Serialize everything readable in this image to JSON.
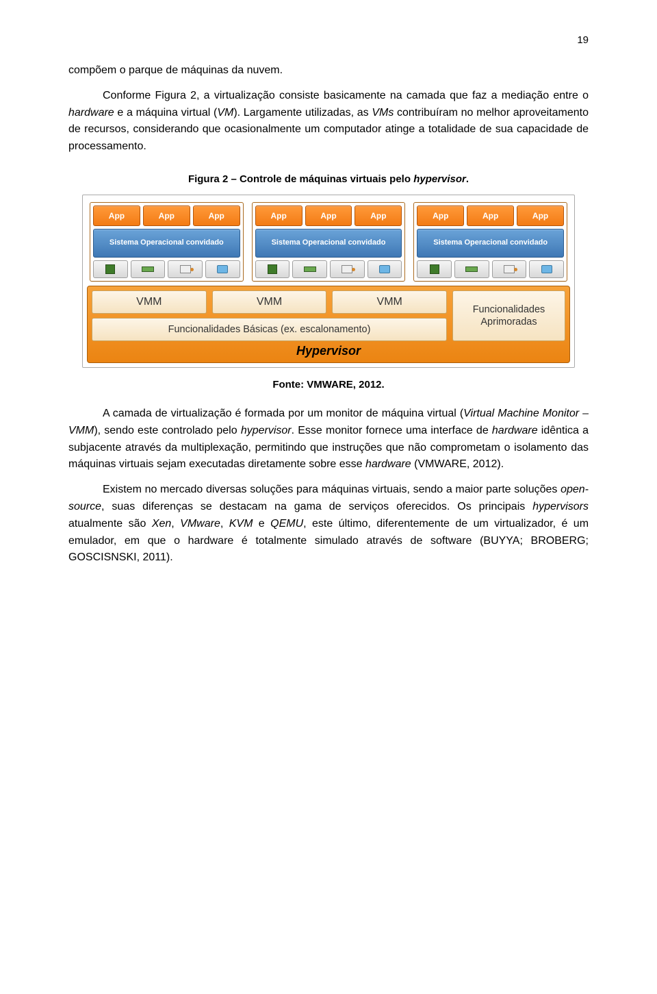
{
  "page_number": "19",
  "paragraphs": {
    "p1": "compõem o parque de máquinas da nuvem.",
    "p2_prefix": "Conforme Figura 2, a virtualização consiste basicamente na camada que faz a mediação entre o ",
    "p2_hw": "hardware",
    "p2_mid": " e a máquina virtual (",
    "p2_vm": "VM",
    "p2_suffix": "). Largamente utilizadas, as ",
    "p2_vms": "VMs",
    "p2_end": " contribuíram no melhor aproveitamento de recursos, considerando que ocasionalmente um computador atinge a totalidade de sua capacidade de processamento.",
    "p3_a": "A camada de virtualização é formada por um monitor de máquina virtual (",
    "p3_vmm": "Virtual Machine Monitor – VMM",
    "p3_b": "), sendo este controlado pelo ",
    "p3_hyp": "hypervisor",
    "p3_c": ". Esse monitor fornece uma interface de ",
    "p3_hw": "hardware",
    "p3_d": " idêntica a subjacente através da multiplexação, permitindo que instruções que não comprometam o isolamento das máquinas virtuais sejam executadas diretamente sobre esse ",
    "p3_hw2": "hardware",
    "p3_e": " (VMWARE, 2012).",
    "p4_a": "Existem no mercado diversas soluções para máquinas virtuais, sendo a maior parte soluções ",
    "p4_os": "open-source",
    "p4_b": ", suas diferenças se destacam na gama de serviços oferecidos. Os principais ",
    "p4_hyp": "hypervisors",
    "p4_c": " atualmente são ",
    "p4_xen": "Xen",
    "p4_d": ", ",
    "p4_vmw": "VMware",
    "p4_e": ", ",
    "p4_kvm": "KVM",
    "p4_f": " e ",
    "p4_qemu": "QEMU",
    "p4_g": ", este último, diferentemente de um virtualizador, é um emulador, em que o hardware é totalmente simulado através de software (BUYYA; BROBERG; GOSCISNSKI, 2011)."
  },
  "caption": {
    "prefix": "Figura 2 – Controle de máquinas virtuais pelo ",
    "hyp": "hypervisor",
    "suffix": "."
  },
  "source": "Fonte: VMWARE, 2012.",
  "diagram": {
    "app_label": "App",
    "os_label": "Sistema Operacional convidado",
    "vmm_label": "VMM",
    "func_label": "Funcionalidades Básicas (ex. escalonamento)",
    "apr_label": "Funcionalidades Aprimoradas",
    "hypervisor_label": "Hypervisor",
    "colors": {
      "app_bg_top": "#ff9a3a",
      "app_bg_bottom": "#f37b14",
      "os_bg_top": "#6aa3d8",
      "os_bg_bottom": "#3f78b5",
      "hyp_bg_top": "#f7a23a",
      "hyp_bg_bottom": "#eb8412",
      "box_bg_top": "#fdf5e7",
      "box_bg_bottom": "#f6e3c1",
      "vm_border": "#aa6a1f"
    },
    "vm_count": 3,
    "apps_per_vm": 3,
    "hw_icons_per_vm": 4
  }
}
